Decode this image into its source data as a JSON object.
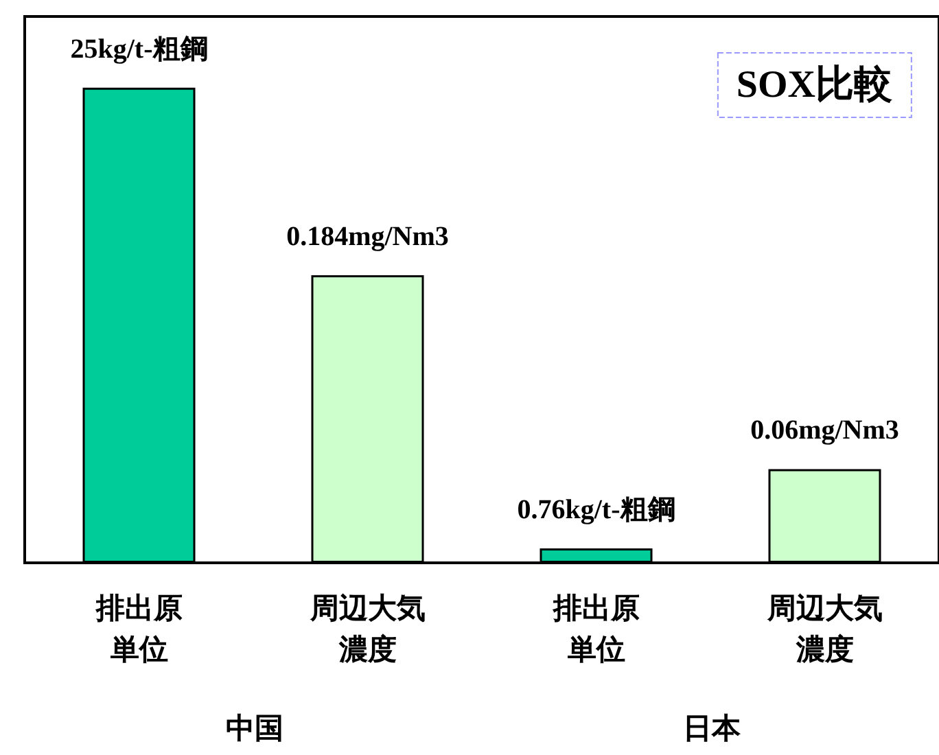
{
  "chart_data": {
    "type": "bar",
    "title": "SOX比較",
    "categories": [
      "排出原単位",
      "周辺大気濃度",
      "排出原単位",
      "周辺大気濃度"
    ],
    "series": [
      {
        "color": "#00cc99",
        "values": [
          25,
          null,
          0.76,
          null
        ],
        "value_labels": [
          "25kg/t-粗鋼",
          null,
          "0.76kg/t-粗鋼",
          null
        ]
      },
      {
        "color": "#ccffcc",
        "axis": "y2",
        "values": [
          null,
          0.184,
          null,
          0.06
        ],
        "value_labels": [
          null,
          "0.184mg/Nm3",
          null,
          "0.06mg/Nm3"
        ]
      }
    ],
    "annotations": [
      "中国",
      "日本"
    ],
    "tick_labels": "x"
  }
}
